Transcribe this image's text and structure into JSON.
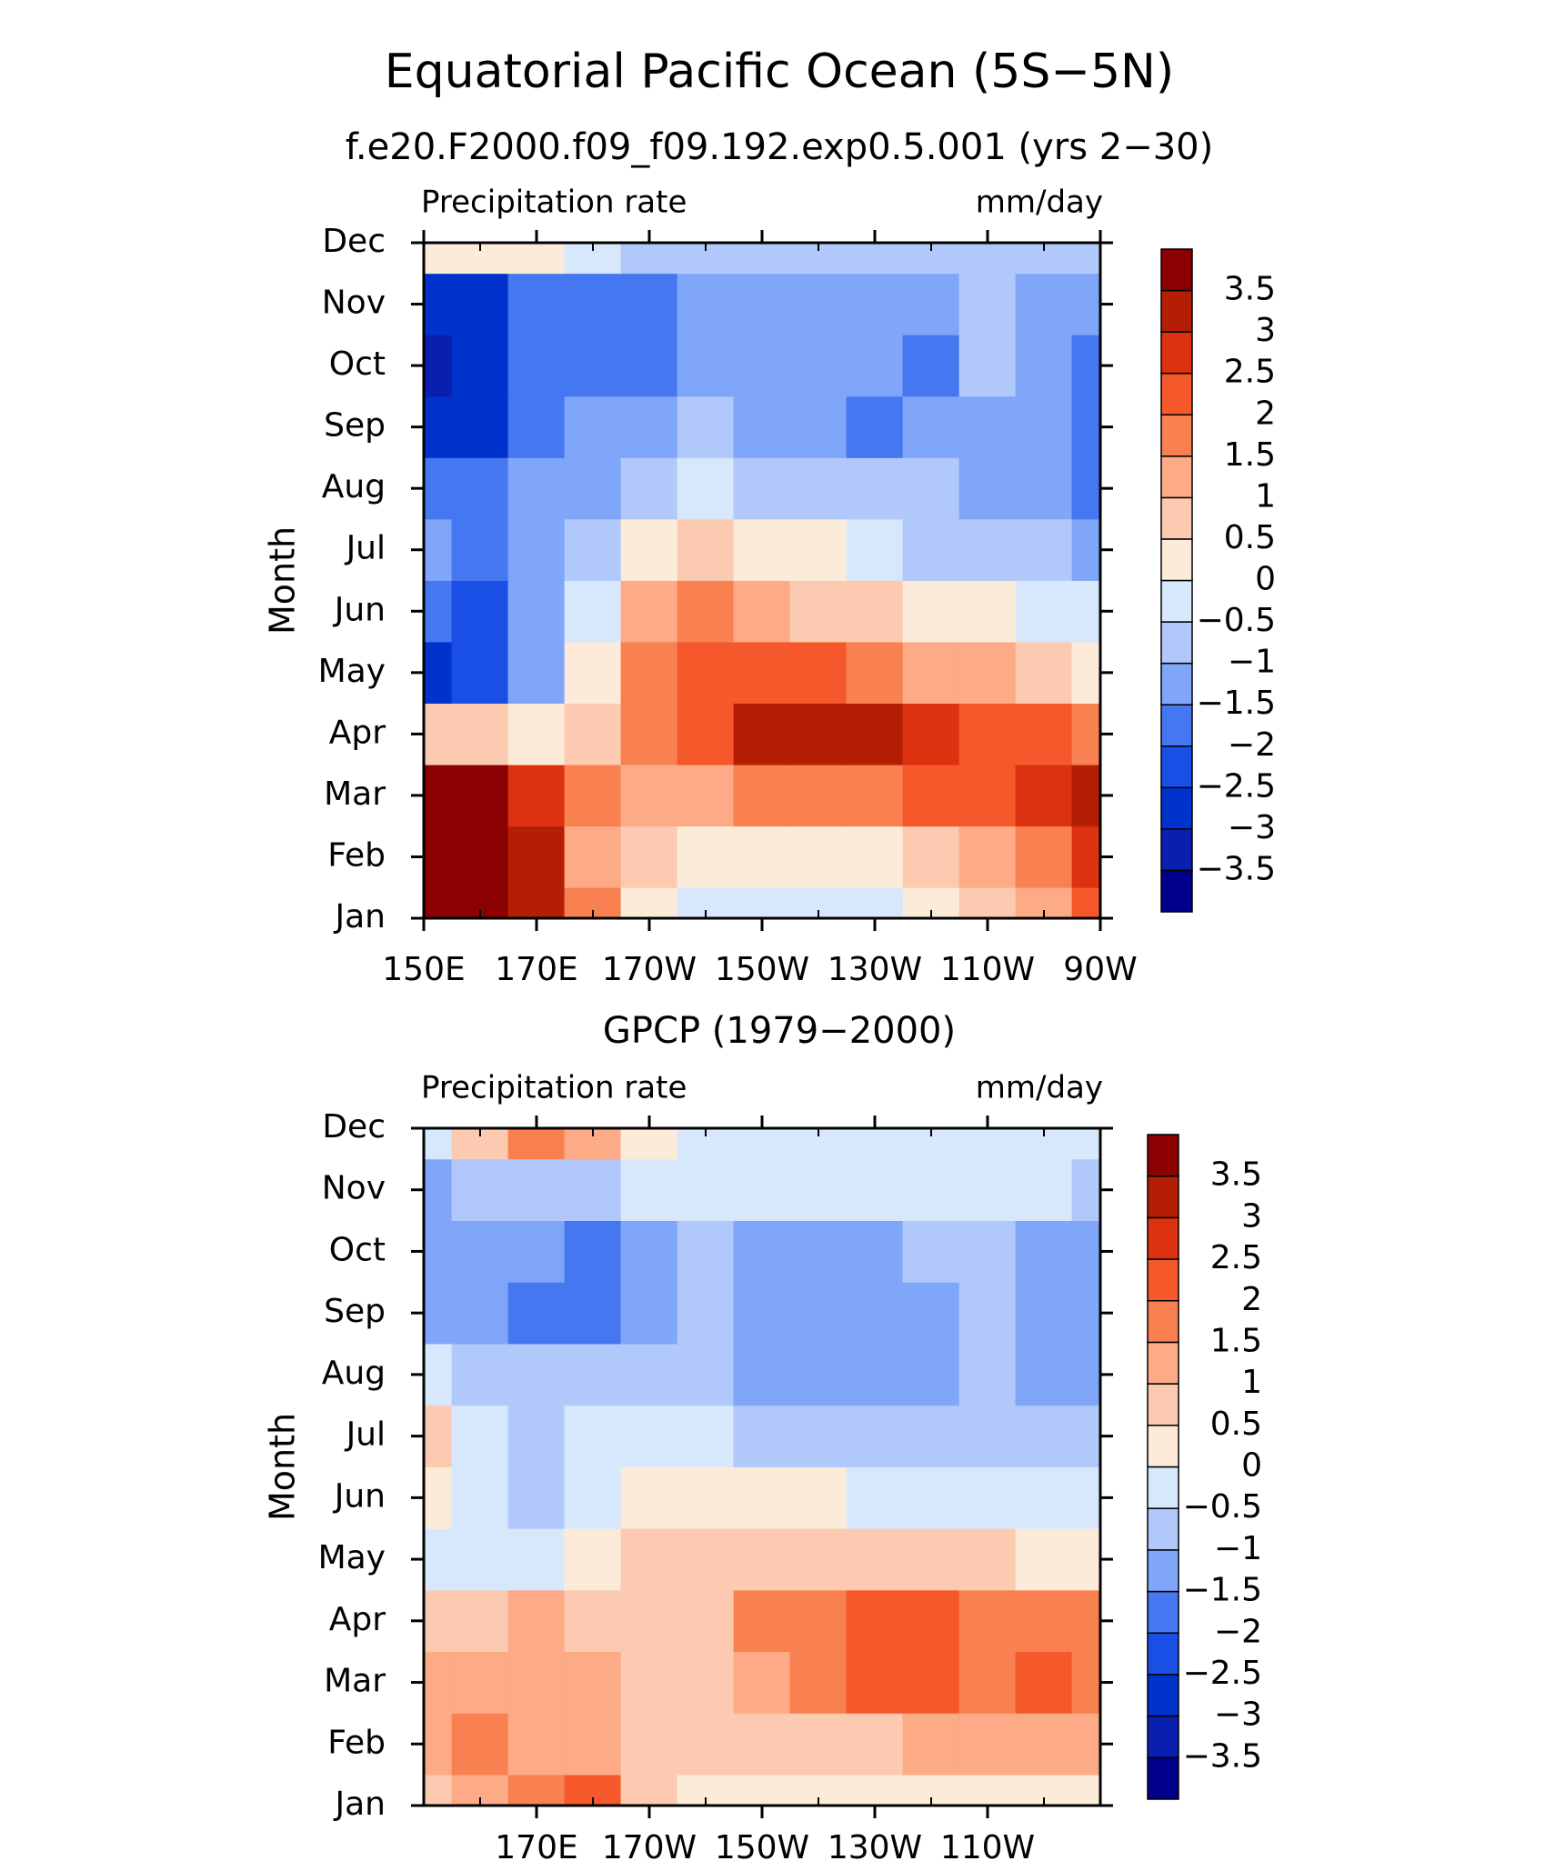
{
  "chart_data": [
    {
      "type": "contour",
      "title": "Equatorial Pacific Ocean (5S−5N)",
      "subtitle": "f.e20.F2000.f09_f09.192.exp0.5.001 (yrs 2−30)",
      "left_label": "Precipitation rate",
      "right_label": "mm/day",
      "ylabel": "Month",
      "categories": [
        "Jan",
        "Feb",
        "Mar",
        "Apr",
        "May",
        "Jun",
        "Jul",
        "Aug",
        "Sep",
        "Oct",
        "Nov",
        "Dec"
      ],
      "x": [
        150,
        160,
        170,
        180,
        190,
        200,
        210,
        220,
        230,
        240,
        250,
        260,
        270
      ],
      "xlim": [
        150,
        270
      ],
      "xticks": [
        {
          "value": 150,
          "label": "150E"
        },
        {
          "value": 170,
          "label": "170E"
        },
        {
          "value": 190,
          "label": "170W"
        },
        {
          "value": 210,
          "label": "150W"
        },
        {
          "value": 230,
          "label": "130W"
        },
        {
          "value": 250,
          "label": "110W"
        },
        {
          "value": 270,
          "label": "90W"
        }
      ],
      "xminorticks": [
        160,
        180,
        200,
        220,
        240,
        260
      ],
      "values": [
        [
          4,
          4,
          3,
          1.5,
          0.3,
          -0.3,
          -0.4,
          -0.3,
          -0.2,
          0,
          0.5,
          1.2,
          2
        ],
        [
          4,
          4,
          3.2,
          1.2,
          0.8,
          0.2,
          0.2,
          0.3,
          0.4,
          0.6,
          1,
          1.8,
          2.5
        ],
        [
          3.8,
          3.5,
          2.8,
          1.5,
          1.2,
          1.4,
          1.6,
          1.8,
          1.9,
          2,
          2.2,
          2.6,
          3
        ],
        [
          0.8,
          0.6,
          0.3,
          0.8,
          1.5,
          2.3,
          3,
          3.2,
          3.1,
          2.7,
          2.2,
          2,
          1.8
        ],
        [
          -2.8,
          -2.5,
          -1.2,
          0.2,
          1.5,
          2.2,
          2.2,
          2,
          1.7,
          1.4,
          1,
          0.5,
          0.2
        ],
        [
          -2,
          -2.2,
          -1.2,
          -0.3,
          1.2,
          1.5,
          1.2,
          0.9,
          0.6,
          0.3,
          0,
          -0.3,
          -0.5
        ],
        [
          -1.1,
          -1.6,
          -1.2,
          -0.8,
          0.3,
          0.6,
          0.3,
          0,
          -0.3,
          -0.6,
          -0.8,
          -1,
          -1.2
        ],
        [
          -1.6,
          -1.7,
          -1.5,
          -1.1,
          -0.6,
          -0.4,
          -0.6,
          -0.8,
          -0.9,
          -1,
          -1.1,
          -1.3,
          -1.6
        ],
        [
          -2.8,
          -2.6,
          -1.8,
          -1.3,
          -1.1,
          -1,
          -1.1,
          -1.3,
          -1.6,
          -1.3,
          -1.1,
          -1.4,
          -1.6
        ],
        [
          -3.3,
          -3,
          -2,
          -1.7,
          -1.6,
          -1.3,
          -1.2,
          -1.2,
          -1.2,
          -1.6,
          -1,
          -1.3,
          -1.6
        ],
        [
          -2.8,
          -2.6,
          -2,
          -1.7,
          -1.7,
          -1.2,
          -1.2,
          -1.2,
          -1.2,
          -1.1,
          -1,
          -1.2,
          -1.3
        ],
        [
          0.3,
          0.2,
          0.1,
          -0.3,
          -0.8,
          -1,
          -1,
          -0.9,
          -0.9,
          -0.9,
          -0.8,
          -0.7,
          -0.6
        ]
      ],
      "levels": [
        {
          "value": -3.5,
          "label": "−3.5"
        },
        {
          "value": -3,
          "label": "−3"
        },
        {
          "value": -2.5,
          "label": "−2.5"
        },
        {
          "value": -2,
          "label": "−2"
        },
        {
          "value": -1.5,
          "label": "−1.5"
        },
        {
          "value": -1,
          "label": "−1"
        },
        {
          "value": -0.5,
          "label": "−0.5"
        },
        0,
        0.5,
        1,
        1.5,
        2,
        2.5,
        3,
        3.5
      ],
      "colors": [
        "#00008b",
        "#0a1fb0",
        "#0033cc",
        "#1a4fe6",
        "#4477f0",
        "#80a6fa",
        "#b0c8fa",
        "#d8e8fc",
        "#fdebd9",
        "#fccab0",
        "#fcab86",
        "#f98050",
        "#f5582a",
        "#dc3210",
        "#b41e05",
        "#8b0000"
      ]
    },
    {
      "type": "contour",
      "title": "GPCP (1979−2000)",
      "left_label": "Precipitation rate",
      "right_label": "mm/day",
      "ylabel": "Month",
      "categories": [
        "Jan",
        "Feb",
        "Mar",
        "Apr",
        "May",
        "Jun",
        "Jul",
        "Aug",
        "Sep",
        "Oct",
        "Nov",
        "Dec"
      ],
      "x": [
        150,
        160,
        170,
        180,
        190,
        200,
        210,
        220,
        230,
        240,
        250,
        260,
        270
      ],
      "xlim": [
        150,
        270
      ],
      "xticks": [
        {
          "value": 170,
          "label": "170E"
        },
        {
          "value": 190,
          "label": "170W"
        },
        {
          "value": 210,
          "label": "150W"
        },
        {
          "value": 230,
          "label": "130W"
        },
        {
          "value": 250,
          "label": "110W"
        }
      ],
      "xminorticks": [
        160,
        180,
        200,
        220,
        240,
        260
      ],
      "values": [
        [
          0.8,
          1.2,
          1.5,
          2,
          0.8,
          0.3,
          0.2,
          0.2,
          0.2,
          0.1,
          0.2,
          0.3,
          0.4
        ],
        [
          1.2,
          1.5,
          1.2,
          1.3,
          0.7,
          0.5,
          0.7,
          0.8,
          0.9,
          1,
          1.1,
          1.2,
          1.3
        ],
        [
          1.4,
          1.2,
          1.3,
          1.2,
          0.5,
          0.8,
          1.3,
          1.7,
          2.1,
          2,
          1.6,
          2.1,
          1.8
        ],
        [
          0.5,
          0.8,
          1,
          0.9,
          0.9,
          0.9,
          1.6,
          1.9,
          2.1,
          2.1,
          1.5,
          1.8,
          1.5
        ],
        [
          -0.3,
          -0.4,
          -0.5,
          0.2,
          0.8,
          0.8,
          0.9,
          0.9,
          0.8,
          0.7,
          0.5,
          0.3,
          0.1
        ],
        [
          0.4,
          -0.4,
          -0.8,
          -0.3,
          0.2,
          0.3,
          0.1,
          0,
          -0.2,
          -0.3,
          -0.4,
          -0.5,
          -0.5
        ],
        [
          0.5,
          -0.5,
          -0.6,
          -0.5,
          -0.5,
          -0.3,
          -0.6,
          -0.7,
          -0.7,
          -0.7,
          -0.8,
          -0.9,
          -1
        ],
        [
          -0.2,
          -0.7,
          -1,
          -0.9,
          -0.8,
          -0.8,
          -1.2,
          -1.2,
          -1.2,
          -1.3,
          -0.9,
          -1.2,
          -1.1
        ],
        [
          -1.3,
          -1.2,
          -1.6,
          -1.6,
          -1.1,
          -1,
          -1.3,
          -1.3,
          -1.4,
          -1.3,
          -0.9,
          -1.3,
          -1.3
        ],
        [
          -1.2,
          -1.1,
          -1.5,
          -1.6,
          -1.1,
          -0.8,
          -1.2,
          -1.3,
          -1.2,
          -1,
          -0.8,
          -1.2,
          -1.3
        ],
        [
          -1.1,
          -0.7,
          -0.8,
          -0.6,
          -0.4,
          -0.3,
          -0.4,
          -0.4,
          -0.3,
          -0.2,
          -0.3,
          -0.4,
          -0.6
        ],
        [
          -0.2,
          0.8,
          1.6,
          1,
          0.3,
          -0.1,
          -0.3,
          -0.4,
          -0.4,
          -0.3,
          -0.3,
          -0.4,
          -0.5
        ]
      ],
      "levels": [
        {
          "value": -3.5,
          "label": "−3.5"
        },
        {
          "value": -3,
          "label": "−3"
        },
        {
          "value": -2.5,
          "label": "−2.5"
        },
        {
          "value": -2,
          "label": "−2"
        },
        {
          "value": -1.5,
          "label": "−1.5"
        },
        {
          "value": -1,
          "label": "−1"
        },
        {
          "value": -0.5,
          "label": "−0.5"
        },
        0,
        0.5,
        1,
        1.5,
        2,
        2.5,
        3,
        3.5
      ],
      "colors": [
        "#00008b",
        "#0a1fb0",
        "#0033cc",
        "#1a4fe6",
        "#4477f0",
        "#80a6fa",
        "#b0c8fa",
        "#d8e8fc",
        "#fdebd9",
        "#fccab0",
        "#fcab86",
        "#f98050",
        "#f5582a",
        "#dc3210",
        "#b41e05",
        "#8b0000"
      ]
    }
  ]
}
